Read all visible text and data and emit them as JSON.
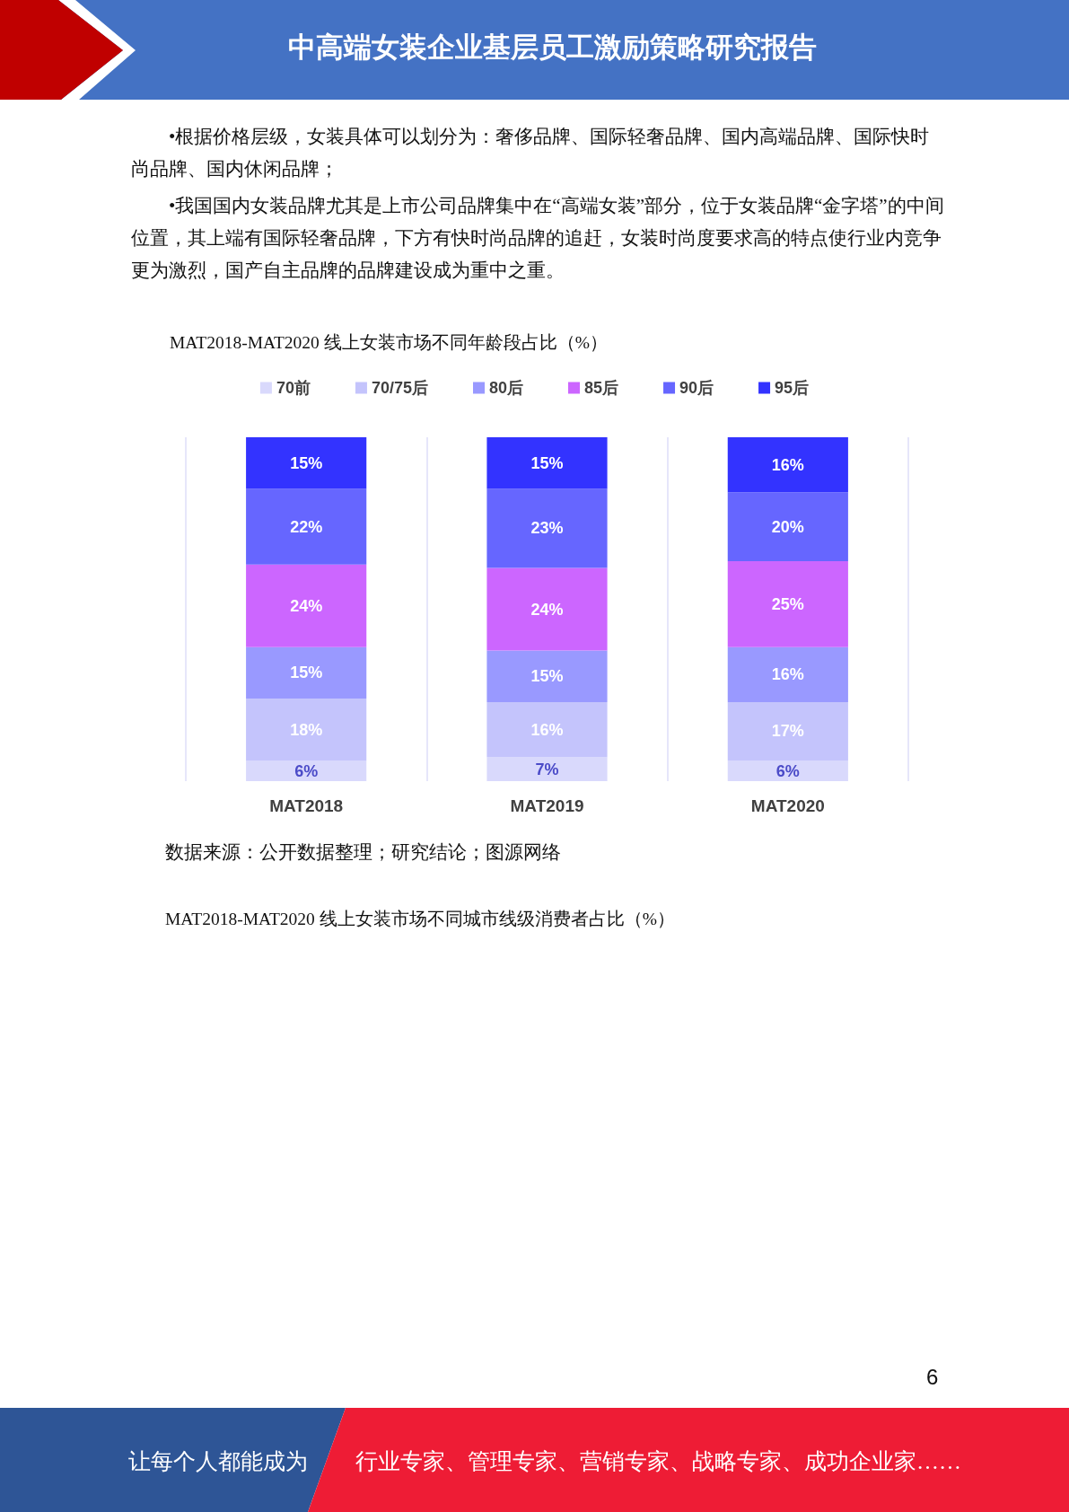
{
  "chart_data": {
    "type": "bar",
    "title": "MAT2018-MAT2020 线上女装市场不同年龄段占比（%）",
    "categories": [
      "MAT2018",
      "MAT2019",
      "MAT2020"
    ],
    "stacked": true,
    "series": [
      {
        "name": "70前",
        "color": "#d9d9fc",
        "values": [
          6,
          7,
          6
        ],
        "value_labels": [
          "6%",
          "7%",
          "6%"
        ]
      },
      {
        "name": "70/75后",
        "color": "#c4c4fc",
        "values": [
          18,
          16,
          17
        ],
        "value_labels": [
          "18%",
          "16%",
          "17%"
        ]
      },
      {
        "name": "80后",
        "color": "#9999ff",
        "values": [
          15,
          15,
          16
        ],
        "value_labels": [
          "15%",
          "15%",
          "16%"
        ]
      },
      {
        "name": "85后",
        "color": "#cc66ff",
        "values": [
          24,
          24,
          25
        ],
        "value_labels": [
          "24%",
          "24%",
          "25%"
        ]
      },
      {
        "name": "90后",
        "color": "#6666ff",
        "values": [
          22,
          23,
          20
        ],
        "value_labels": [
          "22%",
          "23%",
          "20%"
        ]
      },
      {
        "name": "95后",
        "color": "#3333ff",
        "values": [
          15,
          15,
          16
        ],
        "value_labels": [
          "15%",
          "15%",
          "16%"
        ]
      }
    ],
    "grid": "x",
    "legend": "top",
    "tick_labels": "x",
    "annotations": [
      "中高端女装企业基层员工激励策略研究报告",
      "•根据价格层级，女装具体可以划分为：奢侈品牌、国际轻奢品牌、国内高端品牌、国际快时尚品牌、国内休闲品牌；",
      "•我国国内女装品牌尤其是上市公司品牌集中在“高端女装”部分，位于女装品牌“金字塔”的中间位置，其上端有国际轻奢品牌，下方有快时尚品牌的追赶，女装时尚度要求高的特点使行业内竞争更为激烈，国产自主品牌的品牌建设成为重中之重。",
      "数据来源：公开数据整理；研究结论；图源网络",
      "MAT2018-MAT2020 线上女装市场不同城市线级消费者占比（%）",
      "6",
      "让每个人都能成为",
      "行业专家、管理专家、营销专家、战略专家、成功企业家……"
    ]
  }
}
